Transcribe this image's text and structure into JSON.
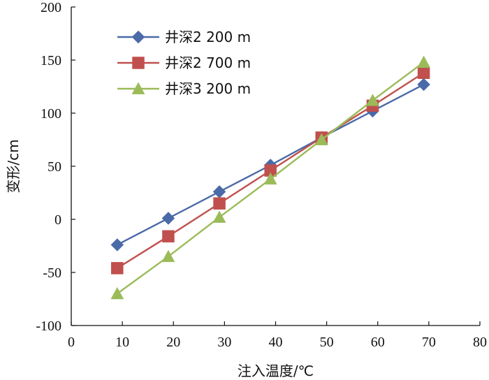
{
  "chart_data": {
    "type": "line",
    "title": "",
    "xlabel": "注入温度/℃",
    "ylabel": "变形/cm",
    "xlim": [
      0,
      80
    ],
    "ylim": [
      -100,
      200
    ],
    "xticks": [
      0,
      10,
      20,
      30,
      40,
      50,
      60,
      70,
      80
    ],
    "yticks": [
      -100,
      -50,
      0,
      50,
      100,
      150,
      200
    ],
    "grid": false,
    "legend_position": "top-left",
    "series": [
      {
        "name": "井深2 200 m",
        "marker": "diamond",
        "color": "#4a6aa8",
        "x": [
          9,
          19,
          29,
          39,
          49,
          59,
          69
        ],
        "y": [
          -24,
          1,
          26,
          51,
          77,
          102,
          127
        ]
      },
      {
        "name": "井深2 700 m",
        "marker": "square",
        "color": "#c0504d",
        "x": [
          9,
          19,
          29,
          39,
          49,
          59,
          69
        ],
        "y": [
          -46,
          -16,
          15,
          46,
          77,
          107,
          138
        ]
      },
      {
        "name": "井深3 200 m",
        "marker": "triangle",
        "color": "#9bbb59",
        "x": [
          9,
          19,
          29,
          39,
          49,
          59,
          69
        ],
        "y": [
          -70,
          -35,
          2,
          38,
          75,
          112,
          148
        ]
      }
    ]
  }
}
